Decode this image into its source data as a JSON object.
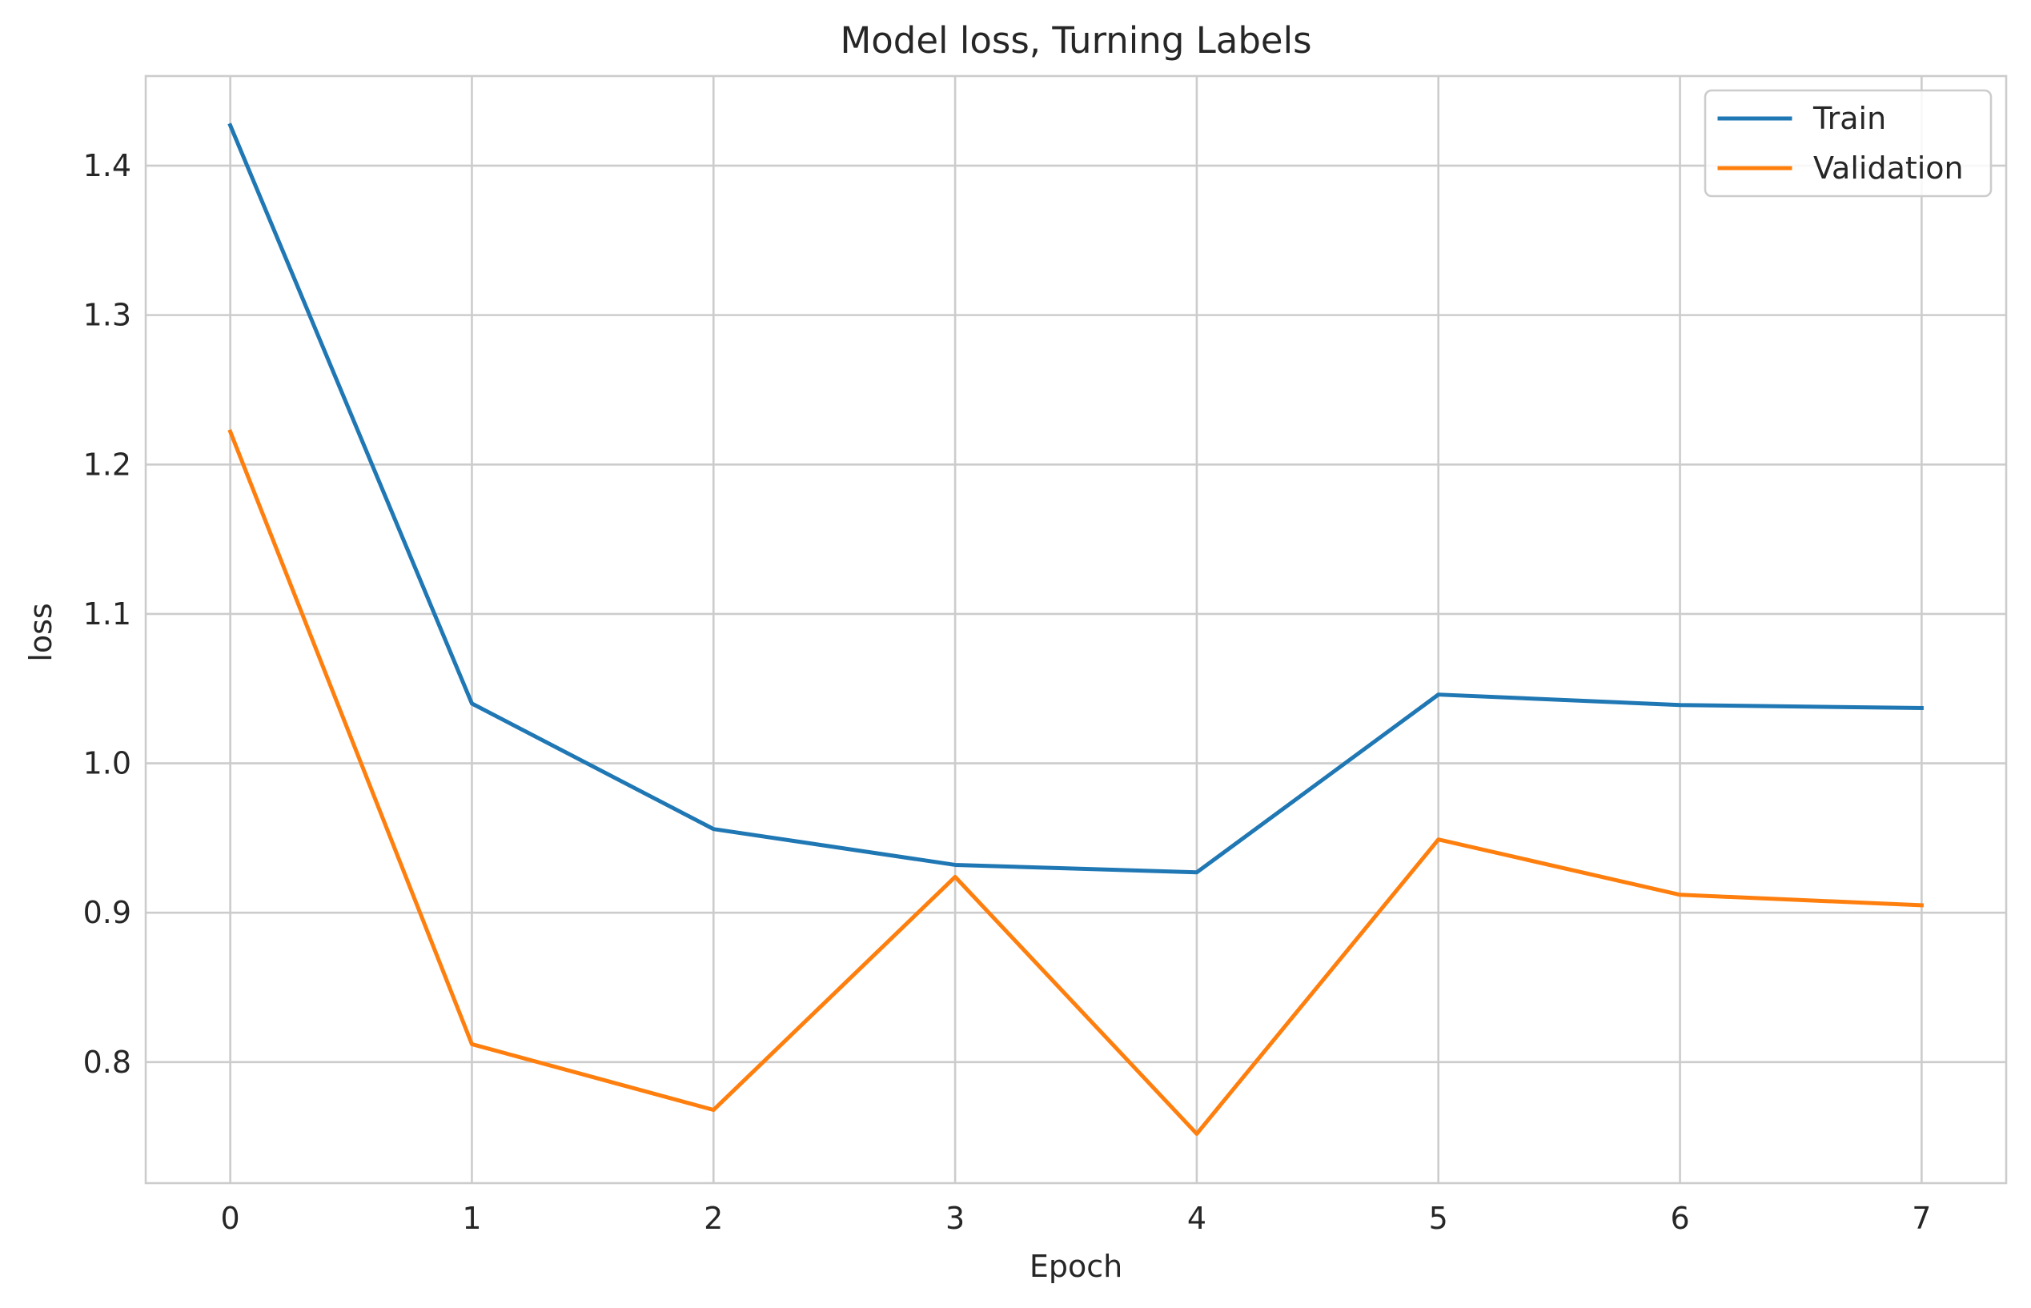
{
  "chart_data": {
    "type": "line",
    "title": "Model loss, Turning Labels",
    "xlabel": "Epoch",
    "ylabel": "loss",
    "x": [
      0,
      1,
      2,
      3,
      4,
      5,
      6,
      7
    ],
    "xticks": [
      "0",
      "1",
      "2",
      "3",
      "4",
      "5",
      "6",
      "7"
    ],
    "yticks": [
      "0.8",
      "0.9",
      "1.0",
      "1.1",
      "1.2",
      "1.3",
      "1.4"
    ],
    "ytick_values": [
      0.8,
      0.9,
      1.0,
      1.1,
      1.2,
      1.3,
      1.4
    ],
    "xlim": [
      -0.35,
      7.35
    ],
    "ylim": [
      0.719,
      1.46
    ],
    "grid": true,
    "legend_position": "top-right",
    "series": [
      {
        "name": "Train",
        "color": "#1f77b4",
        "values": [
          1.427,
          1.04,
          0.956,
          0.932,
          0.927,
          1.046,
          1.039,
          1.037
        ]
      },
      {
        "name": "Validation",
        "color": "#ff7f0e",
        "values": [
          1.222,
          0.812,
          0.768,
          0.924,
          0.752,
          0.949,
          0.912,
          0.905
        ]
      }
    ]
  }
}
